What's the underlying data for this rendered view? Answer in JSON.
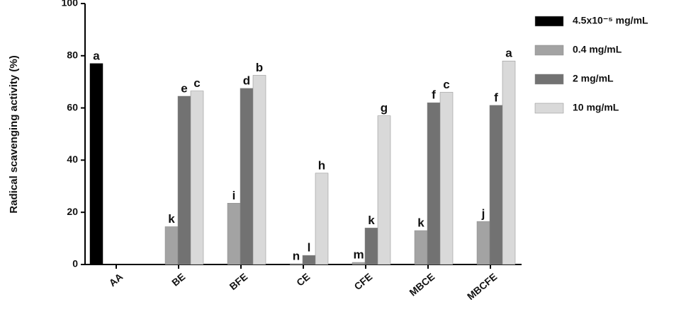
{
  "chart_data": {
    "type": "bar",
    "y_label": "Radical scavenging activity (%)",
    "categories": [
      "AA",
      "BE",
      "BFE",
      "CE",
      "CFE",
      "MBCE",
      "MBCFE"
    ],
    "series": [
      {
        "name": "4.5x10⁻⁵ mg/mL",
        "color": "#000000",
        "values": [
          77,
          null,
          null,
          null,
          null,
          null,
          null
        ],
        "letters": [
          "a",
          null,
          null,
          null,
          null,
          null,
          null
        ]
      },
      {
        "name": "0.4 mg/mL",
        "color": "#a3a3a3",
        "values": [
          null,
          14.5,
          23.5,
          0.3,
          0.8,
          13,
          16.5
        ],
        "letters": [
          null,
          "k",
          "i",
          "n",
          "m",
          "k",
          "j"
        ]
      },
      {
        "name": "2 mg/mL",
        "color": "#727272",
        "values": [
          null,
          64.5,
          67.5,
          3.5,
          14,
          62,
          61
        ],
        "letters": [
          null,
          "e",
          "d",
          "l",
          "k",
          "f",
          "f"
        ]
      },
      {
        "name": "10 mg/mL",
        "color": "#d9d9d9",
        "values": [
          null,
          66.5,
          72.5,
          35,
          57,
          66,
          78
        ],
        "letters": [
          null,
          "c",
          "b",
          "h",
          "g",
          "c",
          "a"
        ]
      }
    ],
    "ylim": [
      0,
      100
    ],
    "yticks": [
      0,
      20,
      40,
      60,
      80,
      100
    ]
  }
}
